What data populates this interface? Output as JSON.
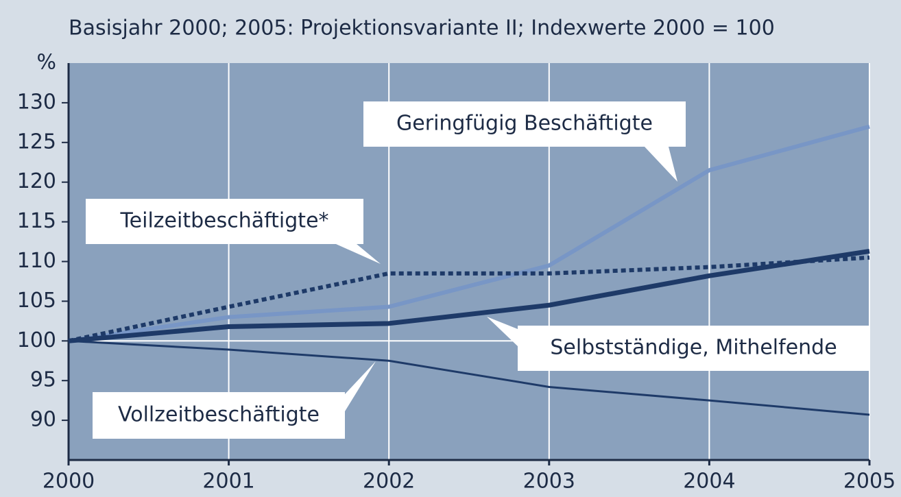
{
  "chart_data": {
    "type": "line",
    "title": "Basisjahr 2000; 2005: Projektionsvariante II; Indexwerte 2000 = 100",
    "y_label": "%",
    "x": [
      2000,
      2001,
      2002,
      2003,
      2004,
      2005
    ],
    "xlim": [
      2000,
      2005
    ],
    "xticks": [
      2000,
      2001,
      2002,
      2003,
      2004,
      2005
    ],
    "ylim": [
      85,
      135
    ],
    "yticks": [
      90,
      95,
      100,
      105,
      110,
      115,
      120,
      125,
      130
    ],
    "hline": 100,
    "grid": true,
    "series": [
      {
        "name": "Geringfügig Beschäftigte",
        "color": "#7896c6",
        "line_style": "solid",
        "values": [
          100,
          103,
          104.3,
          109.5,
          121.5,
          127
        ]
      },
      {
        "name": "Teilzeitbeschäftigte*",
        "color": "#1e3a68",
        "line_style": "dotted",
        "values": [
          100,
          104.3,
          108.5,
          108.5,
          109.3,
          110.5
        ]
      },
      {
        "name": "Selbstständige, Mithelfende",
        "color": "#1e3a68",
        "line_style": "solid",
        "values": [
          100,
          101.8,
          102.2,
          104.5,
          108.2,
          111.3
        ]
      },
      {
        "name": "Vollzeitbeschäftigte",
        "color": "#1e3a68",
        "line_style": "solid",
        "values": [
          100,
          98.9,
          97.5,
          94.2,
          92.5,
          90.7
        ]
      }
    ]
  }
}
